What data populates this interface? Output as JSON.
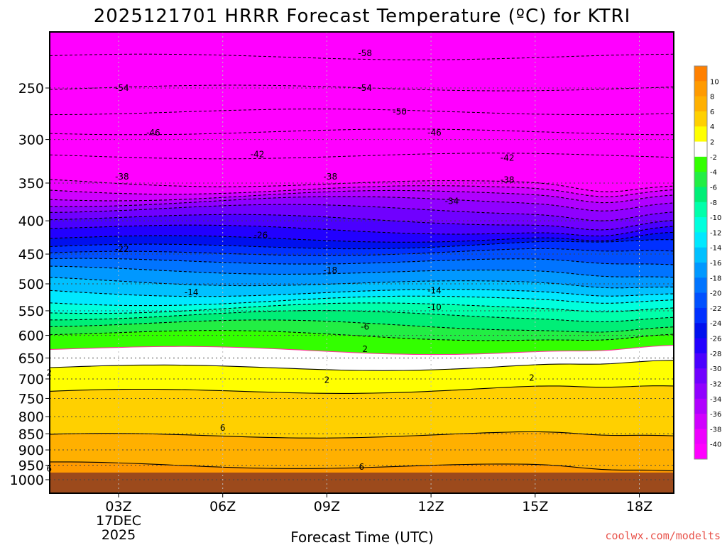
{
  "chart_data": {
    "type": "heatmap",
    "title": "2025121701 HRRR Forecast Temperature (ºC) for KTRI",
    "xlabel": "Forecast Time (UTC)",
    "ylabel": "",
    "x_ticks": [
      "03Z",
      "06Z",
      "09Z",
      "12Z",
      "15Z",
      "18Z"
    ],
    "x_date_lines": [
      "17DEC",
      "2025"
    ],
    "y_ticks": [
      250,
      300,
      350,
      400,
      450,
      500,
      550,
      600,
      650,
      700,
      750,
      800,
      850,
      900,
      950,
      1000
    ],
    "y_scale": "log",
    "y_reversed": true,
    "x_range_hours": [
      0,
      18
    ],
    "y_range_hpa": [
      200,
      1025
    ],
    "grid": "dotted",
    "colorbar": {
      "ticks": [
        10,
        8,
        6,
        4,
        2,
        -2,
        -4,
        -6,
        -8,
        -10,
        -12,
        -14,
        -16,
        -18,
        -20,
        -22,
        -24,
        -26,
        -28,
        -30,
        -32,
        -34,
        -36,
        -38,
        -40
      ],
      "bands": [
        {
          "lo": 10,
          "hi": 12,
          "color": "#ff8000"
        },
        {
          "lo": 8,
          "hi": 10,
          "color": "#ff9a00"
        },
        {
          "lo": 6,
          "hi": 8,
          "color": "#ffb000"
        },
        {
          "lo": 4,
          "hi": 6,
          "color": "#ffd000"
        },
        {
          "lo": 2,
          "hi": 4,
          "color": "#ffff00"
        },
        {
          "lo": -2,
          "hi": 2,
          "color": "#ffffff"
        },
        {
          "lo": -4,
          "hi": -2,
          "color": "#33ff00"
        },
        {
          "lo": -6,
          "hi": -4,
          "color": "#22ee44"
        },
        {
          "lo": -8,
          "hi": -6,
          "color": "#00ee77"
        },
        {
          "lo": -10,
          "hi": -8,
          "color": "#00ffaa"
        },
        {
          "lo": -12,
          "hi": -10,
          "color": "#00ffdd"
        },
        {
          "lo": -14,
          "hi": -12,
          "color": "#00e8ff"
        },
        {
          "lo": -16,
          "hi": -14,
          "color": "#00c0ff"
        },
        {
          "lo": -18,
          "hi": -16,
          "color": "#0098ff"
        },
        {
          "lo": -20,
          "hi": -18,
          "color": "#0074ff"
        },
        {
          "lo": -22,
          "hi": -20,
          "color": "#0050ff"
        },
        {
          "lo": -24,
          "hi": -22,
          "color": "#0030ff"
        },
        {
          "lo": -26,
          "hi": -24,
          "color": "#0010ee"
        },
        {
          "lo": -28,
          "hi": -26,
          "color": "#2200ff"
        },
        {
          "lo": -30,
          "hi": -28,
          "color": "#4a00ff"
        },
        {
          "lo": -32,
          "hi": -30,
          "color": "#7000ff"
        },
        {
          "lo": -34,
          "hi": -32,
          "color": "#9000ff"
        },
        {
          "lo": -36,
          "hi": -34,
          "color": "#b000ff"
        },
        {
          "lo": -38,
          "hi": -36,
          "color": "#d000ff"
        },
        {
          "lo": -40,
          "hi": -38,
          "color": "#ee00ff"
        },
        {
          "lo": -44,
          "hi": -40,
          "color": "#ff00ff"
        }
      ]
    },
    "contour_labels": [
      {
        "text": "-58",
        "hour": 10.1,
        "hpa": 221
      },
      {
        "text": "-54",
        "hour": 3.1,
        "hpa": 250
      },
      {
        "text": "-54",
        "hour": 10.1,
        "hpa": 250
      },
      {
        "text": "-50",
        "hour": 11.1,
        "hpa": 272
      },
      {
        "text": "-46",
        "hour": 4.0,
        "hpa": 293
      },
      {
        "text": "-46",
        "hour": 12.1,
        "hpa": 293
      },
      {
        "text": "-42",
        "hour": 7.0,
        "hpa": 316
      },
      {
        "text": "-42",
        "hour": 14.2,
        "hpa": 320
      },
      {
        "text": "-38",
        "hour": 3.1,
        "hpa": 342
      },
      {
        "text": "-38",
        "hour": 9.1,
        "hpa": 342
      },
      {
        "text": "-38",
        "hour": 14.2,
        "hpa": 346
      },
      {
        "text": "-34",
        "hour": 12.6,
        "hpa": 373
      },
      {
        "text": "-26",
        "hour": 7.1,
        "hpa": 421
      },
      {
        "text": "-22",
        "hour": 3.1,
        "hpa": 442
      },
      {
        "text": "-18",
        "hour": 9.1,
        "hpa": 477
      },
      {
        "text": "-14",
        "hour": 5.1,
        "hpa": 515
      },
      {
        "text": "-14",
        "hour": 12.1,
        "hpa": 512
      },
      {
        "text": "-10",
        "hour": 12.1,
        "hpa": 543
      },
      {
        "text": "-6",
        "hour": 10.1,
        "hpa": 582
      },
      {
        "text": "2",
        "hour": 10.1,
        "hpa": 630
      },
      {
        "text": "2",
        "hour": 1.0,
        "hpa": 685
      },
      {
        "text": "2",
        "hour": 9.0,
        "hpa": 703
      },
      {
        "text": "2",
        "hour": 14.9,
        "hpa": 697
      },
      {
        "text": "6",
        "hour": 6.0,
        "hpa": 832
      },
      {
        "text": "6",
        "hour": 10.0,
        "hpa": 956
      },
      {
        "text": "6",
        "hour": 1.0,
        "hpa": 962
      }
    ]
  },
  "credit": "coolwx.com/modelts"
}
